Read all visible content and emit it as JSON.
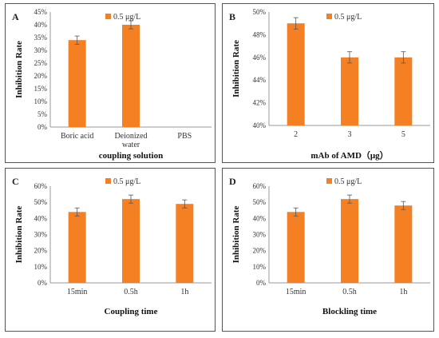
{
  "chart_data": [
    {
      "panel_letter": "A",
      "type": "bar",
      "categories": [
        "Boric acid",
        "Deionized water",
        "PBS"
      ],
      "category_lines": [
        [
          "Boric acid"
        ],
        [
          "Deionized",
          "water"
        ],
        [
          "PBS"
        ]
      ],
      "series": [
        {
          "name": "0.5 μg/L",
          "values": [
            34,
            40,
            0
          ],
          "errors": [
            1.6,
            1.6,
            0
          ]
        }
      ],
      "xlabel": "coupling solution",
      "ylabel": "Inhibition Rate",
      "ylim": [
        0,
        45
      ],
      "yticks": [
        "0%",
        "5%",
        "10%",
        "15%",
        "20%",
        "25%",
        "30%",
        "35%",
        "40%",
        "45%"
      ],
      "grid": false,
      "legend": "top-right"
    },
    {
      "panel_letter": "B",
      "type": "bar",
      "categories": [
        "2",
        "3",
        "5"
      ],
      "category_lines": [
        [
          "2"
        ],
        [
          "3"
        ],
        [
          "5"
        ]
      ],
      "series": [
        {
          "name": "0.5 μg/L",
          "values": [
            49,
            46,
            46
          ],
          "errors": [
            0.5,
            0.5,
            0.5
          ]
        }
      ],
      "xlabel": "mAb of AMD（μg）",
      "ylabel": "Inhibition Rate",
      "ylim": [
        40,
        50
      ],
      "yticks": [
        "40%",
        "42%",
        "44%",
        "46%",
        "48%",
        "50%"
      ],
      "grid": false,
      "legend": "top-right"
    },
    {
      "panel_letter": "C",
      "type": "bar",
      "categories": [
        "15min",
        "0.5h",
        "1h"
      ],
      "category_lines": [
        [
          "15min"
        ],
        [
          "0.5h"
        ],
        [
          "1h"
        ]
      ],
      "series": [
        {
          "name": "0.5 μg/L",
          "values": [
            44,
            52,
            49
          ],
          "errors": [
            2.5,
            2.5,
            2.5
          ]
        }
      ],
      "xlabel": "Coupling time",
      "ylabel": "Inhibition Rate",
      "ylim": [
        0,
        60
      ],
      "yticks": [
        "0%",
        "10%",
        "20%",
        "30%",
        "40%",
        "50%",
        "60%"
      ],
      "grid": false,
      "legend": "top-right"
    },
    {
      "panel_letter": "D",
      "type": "bar",
      "categories": [
        "15min",
        "0.5h",
        "1h"
      ],
      "category_lines": [
        [
          "15min"
        ],
        [
          "0.5h"
        ],
        [
          "1h"
        ]
      ],
      "series": [
        {
          "name": "0.5 μg/L",
          "values": [
            44,
            52,
            48
          ],
          "errors": [
            2.5,
            2.5,
            2.5
          ]
        }
      ],
      "xlabel": "Blockling time",
      "ylabel": "Inhibition Rate",
      "ylim": [
        0,
        60
      ],
      "yticks": [
        "0%",
        "10%",
        "20%",
        "30%",
        "40%",
        "50%",
        "60%"
      ],
      "grid": false,
      "legend": "top-right"
    }
  ],
  "colors": {
    "bar": "#f58024",
    "axis": "#999999",
    "text": "#333333",
    "border": "#555555"
  }
}
